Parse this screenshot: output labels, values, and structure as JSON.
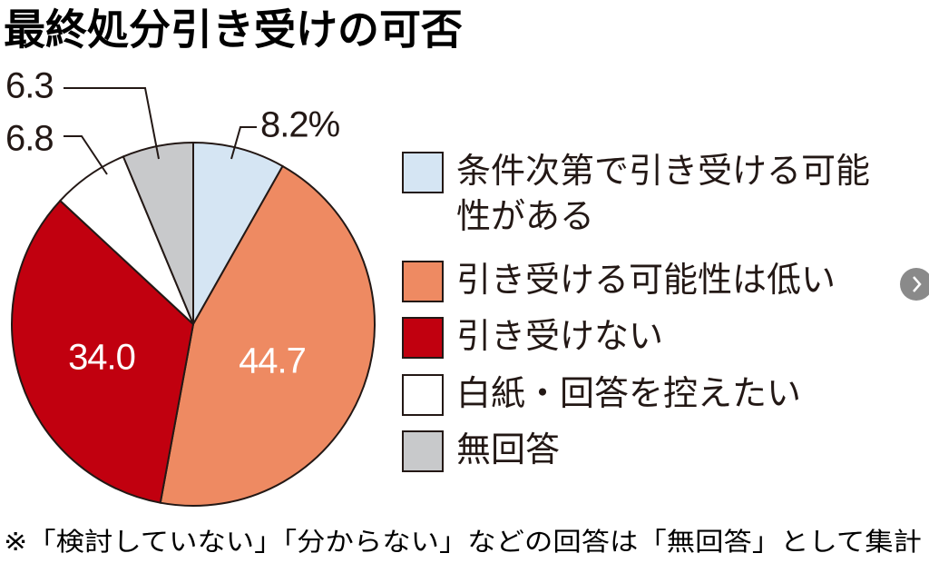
{
  "chart_data": {
    "type": "pie",
    "title": "最終処分引き受けの可否",
    "categories": [
      "条件次第で引き受ける可能性がある",
      "引き受ける可能性は低い",
      "引き受けない",
      "白紙・回答を控えたい",
      "無回答"
    ],
    "values": [
      8.2,
      44.7,
      34.0,
      6.8,
      6.3
    ],
    "value_labels": [
      "8.2%",
      "44.7",
      "34.0",
      "6.8",
      "6.3"
    ],
    "colors": [
      "#d5e5f3",
      "#ee8a62",
      "#c1000f",
      "#ffffff",
      "#c8c9cb"
    ],
    "note": "※「検討していない」「分からない」などの回答は「無回答」として集計"
  }
}
